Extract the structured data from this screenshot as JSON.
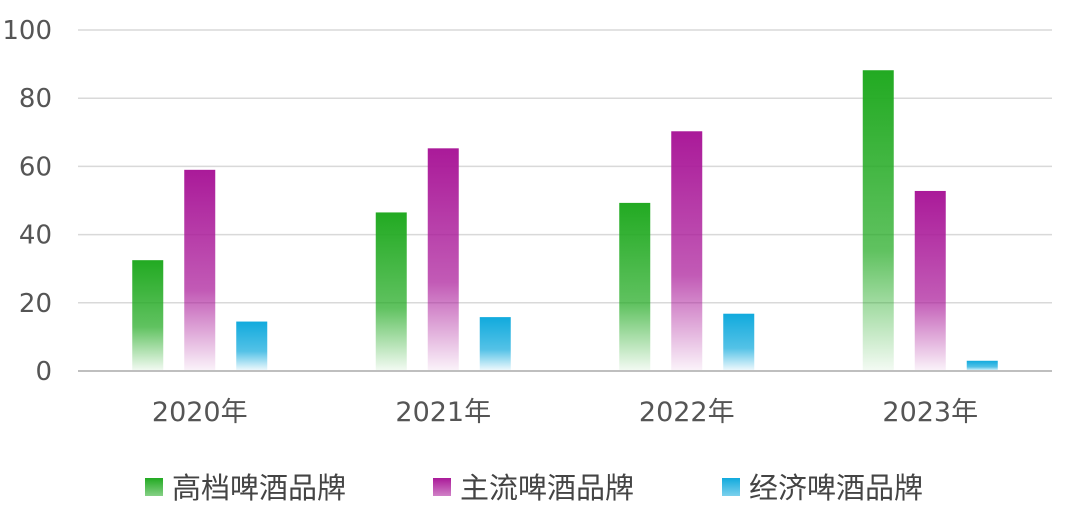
{
  "chart_data": {
    "type": "bar",
    "categories": [
      "2020年",
      "2021年",
      "2022年",
      "2023年"
    ],
    "series": [
      {
        "name": "高档啤酒品牌",
        "values": [
          32.5,
          46.5,
          49.3,
          88.2
        ],
        "color": "#22aa22"
      },
      {
        "name": "主流啤酒品牌",
        "values": [
          59.0,
          65.3,
          70.3,
          52.8
        ],
        "color": "#aa1a99"
      },
      {
        "name": "经济啤酒品牌",
        "values": [
          14.5,
          15.8,
          16.8,
          3.0
        ],
        "color": "#11aadd"
      }
    ],
    "ylim": [
      0,
      100
    ],
    "yticks": [
      0,
      20,
      40,
      60,
      80,
      100
    ],
    "grid": true,
    "legend_position": "bottom"
  }
}
